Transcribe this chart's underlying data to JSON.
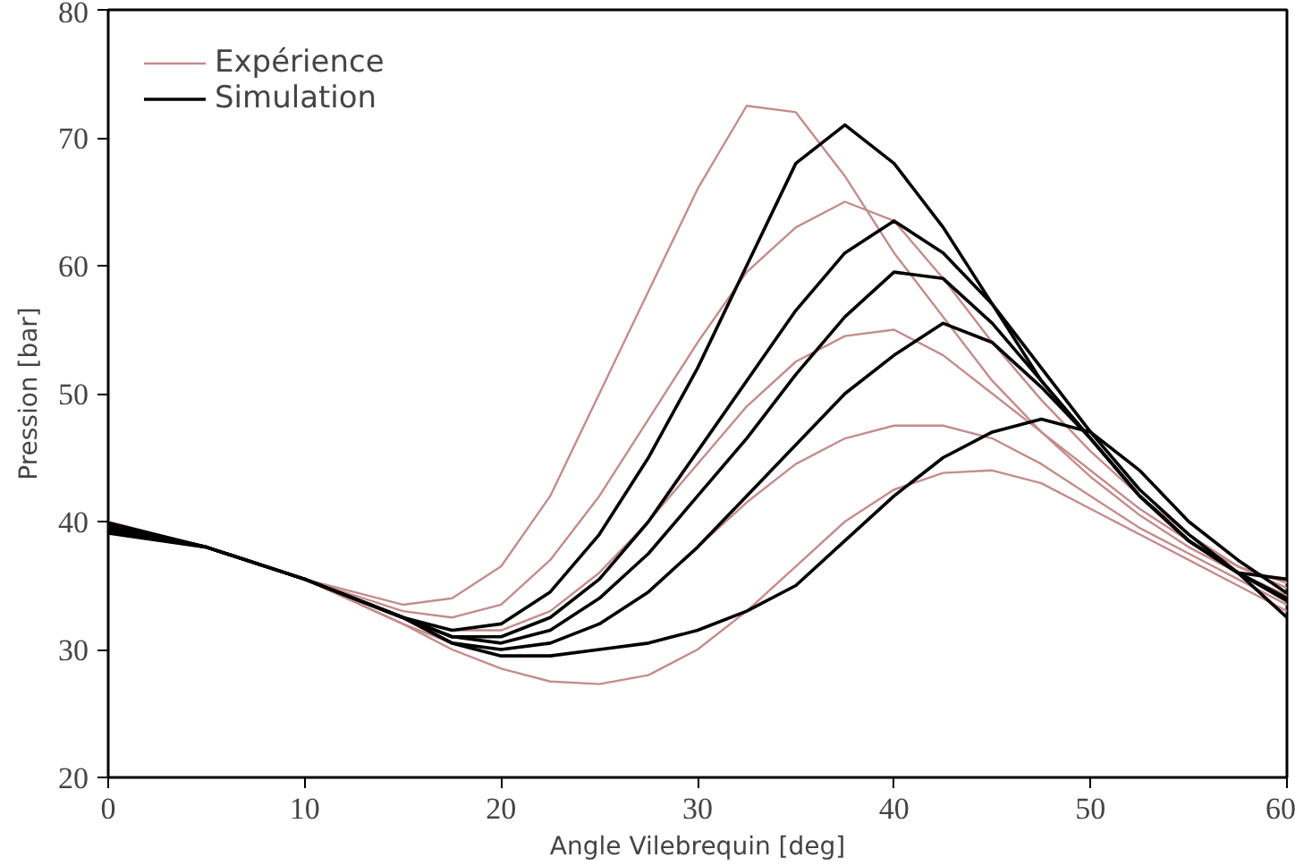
{
  "chart_data": {
    "type": "line",
    "xlabel": "Angle Vilebrequin [deg]",
    "ylabel": "Pression [bar]",
    "x": [
      0,
      5,
      10,
      15,
      17.5,
      20,
      22.5,
      25,
      27.5,
      30,
      32.5,
      35,
      37.5,
      40,
      42.5,
      45,
      47.5,
      50,
      52.5,
      55,
      57.5,
      60
    ],
    "xlim": [
      0,
      60
    ],
    "xticks": [
      0,
      10,
      20,
      30,
      40,
      50,
      60
    ],
    "ylim": [
      20,
      80
    ],
    "yticks": [
      20,
      30,
      40,
      50,
      60,
      70,
      80
    ],
    "grid": false,
    "legend": "top left",
    "line_style": "solid",
    "marker": "none",
    "series": [
      {
        "name": "Expérience",
        "color": "#c48c8c",
        "values": [
          39.2,
          38,
          35.5,
          33.5,
          34,
          36.5,
          42,
          50,
          58,
          66,
          72.5,
          72,
          67,
          61,
          56,
          51,
          47,
          44,
          41,
          38.5,
          36.5,
          35.2
        ]
      },
      {
        "color": "#c48c8c",
        "values": [
          39.4,
          38,
          35.5,
          33,
          32.5,
          33.5,
          37,
          42,
          48,
          54,
          59.5,
          63,
          65,
          63.5,
          59,
          54,
          49.5,
          45.5,
          42,
          39,
          36.5,
          34.8
        ]
      },
      {
        "color": "#c48c8c",
        "values": [
          39.6,
          38,
          35.5,
          32.5,
          31.5,
          31.5,
          33,
          36,
          40,
          44.5,
          49,
          52.5,
          54.5,
          55,
          53,
          50,
          47,
          43.5,
          40.5,
          38,
          36,
          34.2
        ]
      },
      {
        "color": "#c48c8c",
        "values": [
          39.8,
          38,
          35.5,
          32,
          30.5,
          30,
          30.5,
          32,
          34.5,
          38,
          41.5,
          44.5,
          46.5,
          47.5,
          47.5,
          46.5,
          44.5,
          42,
          39.5,
          37.5,
          35.5,
          33.5
        ]
      },
      {
        "color": "#c48c8c",
        "values": [
          40.0,
          38,
          35.5,
          32,
          30,
          28.5,
          27.5,
          27.3,
          28,
          30,
          33,
          36.5,
          40,
          42.5,
          43.8,
          44,
          43,
          41,
          39,
          37,
          35,
          33.0
        ]
      },
      {
        "name": "Simulation",
        "color": "#000000",
        "values": [
          39.3,
          38,
          35.5,
          32.5,
          31.5,
          32,
          34.5,
          39,
          45,
          52,
          60,
          68,
          71,
          68,
          63,
          57,
          51,
          46.5,
          42,
          38.5,
          36,
          34.0
        ]
      },
      {
        "color": "#000000",
        "values": [
          39.5,
          38,
          35.5,
          32.5,
          31,
          31,
          32.5,
          35.5,
          40,
          45.5,
          51,
          56.5,
          61,
          63.5,
          61,
          57,
          52,
          47,
          42.5,
          39,
          36,
          35.5
        ]
      },
      {
        "color": "#000000",
        "values": [
          39.7,
          38,
          35.5,
          32.5,
          31,
          30.5,
          31.5,
          34,
          37.5,
          42,
          46.5,
          51.5,
          56,
          59.5,
          59,
          55.5,
          51,
          46.5,
          42,
          38.5,
          36,
          33.8
        ]
      },
      {
        "color": "#000000",
        "values": [
          39.9,
          38,
          35.5,
          32.5,
          30.5,
          30,
          30.5,
          32,
          34.5,
          38,
          42,
          46,
          50,
          53,
          55.5,
          54,
          50.5,
          46.5,
          42,
          38.5,
          36,
          32.5
        ]
      },
      {
        "color": "#000000",
        "values": [
          39.1,
          38,
          35.5,
          32.5,
          30.5,
          29.5,
          29.5,
          30,
          30.5,
          31.5,
          33,
          35,
          38.5,
          42,
          45,
          47,
          48,
          47,
          44,
          40,
          37,
          34.4
        ]
      }
    ]
  }
}
